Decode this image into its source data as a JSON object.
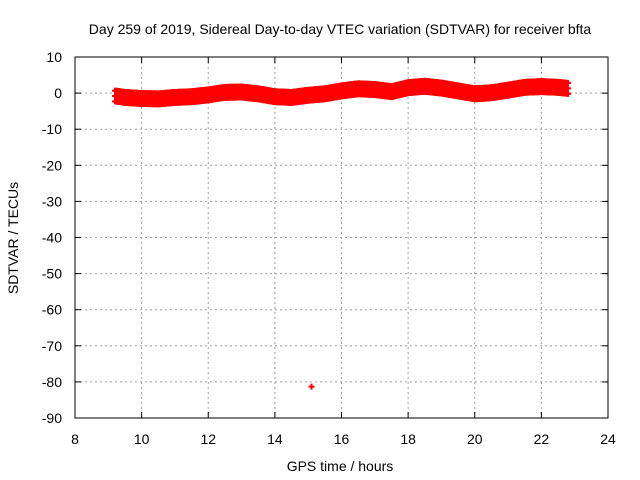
{
  "chart_data": {
    "type": "scatter",
    "title": "Day 259 of 2019, Sidereal Day-to-day VTEC variation (SDTVAR) for receiver bfta",
    "xlabel": "GPS time / hours",
    "ylabel": "SDTVAR / TECUs",
    "xlim": [
      8,
      24
    ],
    "ylim": [
      -90,
      10
    ],
    "xticks": [
      "8",
      "10",
      "12",
      "14",
      "16",
      "18",
      "20",
      "22",
      "24"
    ],
    "yticks": [
      "10",
      "0",
      "-10",
      "-20",
      "-30",
      "-40",
      "-50",
      "-60",
      "-70",
      "-80",
      "-90"
    ],
    "grid": true,
    "marker": "+",
    "series": [
      {
        "color": "#ff0000",
        "trend": [
          [
            9.2,
            -0.8
          ],
          [
            9.5,
            -1.2
          ],
          [
            10.0,
            -1.5
          ],
          [
            10.5,
            -1.6
          ],
          [
            11.0,
            -1.2
          ],
          [
            11.5,
            -1.0
          ],
          [
            12.0,
            -0.5
          ],
          [
            12.5,
            0.2
          ],
          [
            13.0,
            0.3
          ],
          [
            13.5,
            -0.2
          ],
          [
            14.0,
            -1.0
          ],
          [
            14.5,
            -1.2
          ],
          [
            15.0,
            -0.6
          ],
          [
            15.5,
            -0.2
          ],
          [
            16.0,
            0.6
          ],
          [
            16.5,
            1.2
          ],
          [
            17.0,
            1.0
          ],
          [
            17.5,
            0.4
          ],
          [
            18.0,
            1.5
          ],
          [
            18.5,
            1.9
          ],
          [
            19.0,
            1.4
          ],
          [
            19.5,
            0.6
          ],
          [
            20.0,
            -0.2
          ],
          [
            20.5,
            0.1
          ],
          [
            21.0,
            0.8
          ],
          [
            21.5,
            1.6
          ],
          [
            22.0,
            1.8
          ],
          [
            22.5,
            1.6
          ],
          [
            22.8,
            1.3
          ]
        ],
        "outliers": [
          [
            15.1,
            -81.3
          ]
        ]
      }
    ]
  }
}
